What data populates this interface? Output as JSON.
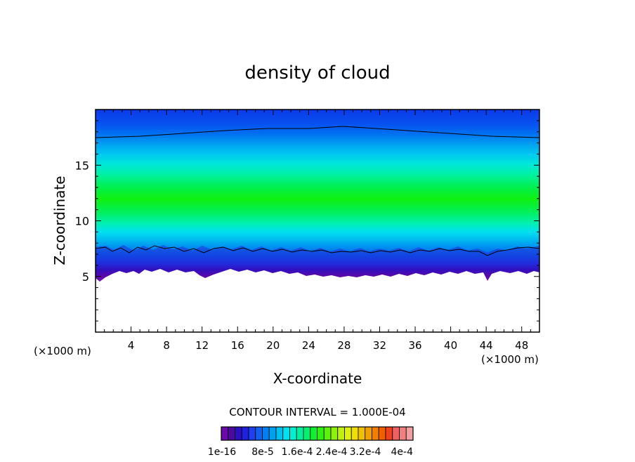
{
  "chart_data": {
    "type": "heatmap",
    "title": "density of cloud",
    "xlabel": "X-coordinate",
    "ylabel": "Z-coordinate",
    "x_unit_left": "(×1000 m)",
    "x_unit_right": "(×1000 m)",
    "xlim": [
      0,
      50
    ],
    "ylim": [
      0,
      20
    ],
    "x_ticks": [
      4,
      8,
      12,
      16,
      20,
      24,
      28,
      32,
      36,
      40,
      44,
      48
    ],
    "y_ticks": [
      5,
      10,
      15
    ],
    "contour_interval_text": "CONTOUR INTERVAL = 1.000E-04",
    "colorbar": {
      "colors": [
        "#6a0aa8",
        "#4a0a9e",
        "#2a10c0",
        "#2020e0",
        "#2040f0",
        "#1060f0",
        "#0080f0",
        "#00a0f0",
        "#00c0f0",
        "#00e0f0",
        "#00f0d0",
        "#00f0a0",
        "#00f070",
        "#10f030",
        "#30f010",
        "#60f010",
        "#90f010",
        "#c0f010",
        "#e0f010",
        "#f0e000",
        "#f0c000",
        "#f0a000",
        "#f08000",
        "#f06000",
        "#f04020",
        "#f06060",
        "#f08080",
        "#f0a0a0"
      ],
      "labels": [
        "1e-16",
        "8e-5",
        "1.6e-4",
        "2.4e-4",
        "3.2e-4",
        "4e-4"
      ]
    },
    "cloud_layer": {
      "cloud_base_km": 5.5,
      "cloud_top_km": 20,
      "max_density_height_km": 12,
      "contour_line_upper_km": 17.8,
      "contour_line_lower_km": 7.3
    }
  }
}
